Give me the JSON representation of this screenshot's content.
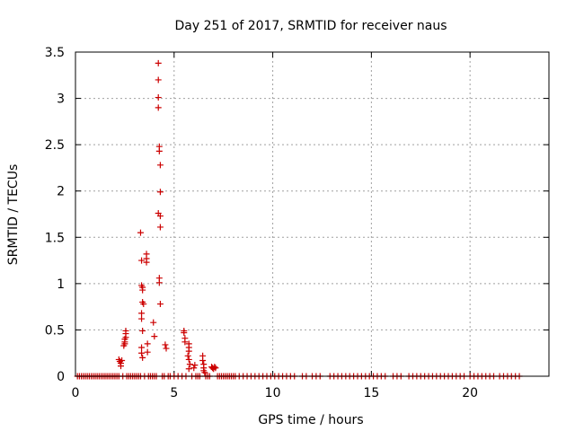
{
  "chart_data": {
    "type": "scatter",
    "title": "Day 251 of 2017, SRMTID for receiver naus",
    "xlabel": "GPS time / hours",
    "ylabel": "SRMTID / TECUs",
    "xlim": [
      0,
      24
    ],
    "ylim": [
      0,
      3.5
    ],
    "xticks": [
      0,
      5,
      10,
      15,
      20
    ],
    "yticks": [
      0,
      0.5,
      1,
      1.5,
      2,
      2.5,
      3,
      3.5
    ],
    "xtick_labels": [
      "0",
      "5",
      "10",
      "15",
      "20"
    ],
    "ytick_labels": [
      "0",
      "0.5",
      "1",
      "1.5",
      "2",
      "2.5",
      "3",
      "3.5"
    ],
    "grid": true,
    "marker": "+",
    "color": "#cc0000",
    "series": [
      {
        "points": [
          [
            2.2,
            0.18
          ],
          [
            2.25,
            0.16
          ],
          [
            2.3,
            0.14
          ],
          [
            2.3,
            0.11
          ],
          [
            2.35,
            0.17
          ],
          [
            2.45,
            0.33
          ],
          [
            2.5,
            0.35
          ],
          [
            2.5,
            0.37
          ],
          [
            2.5,
            0.4
          ],
          [
            2.55,
            0.42
          ],
          [
            2.55,
            0.46
          ],
          [
            2.55,
            0.49
          ],
          [
            3.3,
            1.55
          ],
          [
            3.35,
            1.25
          ],
          [
            3.35,
            0.98
          ],
          [
            3.4,
            0.96
          ],
          [
            3.4,
            0.93
          ],
          [
            3.4,
            0.8
          ],
          [
            3.45,
            0.78
          ],
          [
            3.35,
            0.68
          ],
          [
            3.35,
            0.62
          ],
          [
            3.4,
            0.49
          ],
          [
            3.35,
            0.31
          ],
          [
            3.35,
            0.25
          ],
          [
            3.4,
            0.2
          ],
          [
            3.6,
            1.32
          ],
          [
            3.6,
            1.27
          ],
          [
            3.6,
            1.23
          ],
          [
            3.65,
            0.35
          ],
          [
            3.65,
            0.26
          ],
          [
            3.95,
            0.58
          ],
          [
            4.0,
            0.43
          ],
          [
            4.2,
            3.38
          ],
          [
            4.2,
            3.2
          ],
          [
            4.2,
            3.01
          ],
          [
            4.2,
            2.9
          ],
          [
            4.25,
            2.48
          ],
          [
            4.25,
            2.43
          ],
          [
            4.3,
            2.28
          ],
          [
            4.3,
            1.99
          ],
          [
            4.2,
            1.76
          ],
          [
            4.3,
            1.73
          ],
          [
            4.3,
            1.61
          ],
          [
            4.25,
            1.06
          ],
          [
            4.25,
            1.01
          ],
          [
            4.3,
            0.78
          ],
          [
            4.55,
            0.34
          ],
          [
            4.6,
            0.3
          ],
          [
            5.5,
            0.49
          ],
          [
            5.5,
            0.47
          ],
          [
            5.55,
            0.41
          ],
          [
            5.55,
            0.37
          ],
          [
            5.75,
            0.35
          ],
          [
            5.75,
            0.31
          ],
          [
            5.75,
            0.27
          ],
          [
            5.7,
            0.22
          ],
          [
            5.75,
            0.18
          ],
          [
            5.8,
            0.13
          ],
          [
            5.75,
            0.08
          ],
          [
            6.05,
            0.12
          ],
          [
            6.0,
            0.09
          ],
          [
            6.45,
            0.22
          ],
          [
            6.45,
            0.17
          ],
          [
            6.5,
            0.13
          ],
          [
            6.5,
            0.09
          ],
          [
            6.5,
            0.06
          ],
          [
            6.55,
            0.04
          ],
          [
            6.9,
            0.1
          ],
          [
            6.95,
            0.09
          ],
          [
            7.0,
            0.08
          ],
          [
            7.05,
            0.1
          ],
          [
            7.1,
            0.09
          ],
          [
            0.1,
            0
          ],
          [
            0.2,
            0
          ],
          [
            0.3,
            0
          ],
          [
            0.4,
            0
          ],
          [
            0.5,
            0
          ],
          [
            0.6,
            0
          ],
          [
            0.7,
            0
          ],
          [
            0.8,
            0
          ],
          [
            0.9,
            0
          ],
          [
            1.0,
            0
          ],
          [
            1.1,
            0
          ],
          [
            1.2,
            0
          ],
          [
            1.3,
            0
          ],
          [
            1.4,
            0
          ],
          [
            1.5,
            0
          ],
          [
            1.6,
            0
          ],
          [
            1.7,
            0
          ],
          [
            1.8,
            0
          ],
          [
            1.9,
            0
          ],
          [
            2.0,
            0
          ],
          [
            2.1,
            0
          ],
          [
            2.2,
            0
          ],
          [
            2.4,
            0
          ],
          [
            2.6,
            0
          ],
          [
            2.7,
            0
          ],
          [
            2.8,
            0
          ],
          [
            2.9,
            0
          ],
          [
            3.0,
            0
          ],
          [
            3.1,
            0
          ],
          [
            3.2,
            0
          ],
          [
            3.3,
            0
          ],
          [
            3.5,
            0
          ],
          [
            3.7,
            0
          ],
          [
            3.8,
            0
          ],
          [
            3.9,
            0
          ],
          [
            4.0,
            0
          ],
          [
            4.1,
            0
          ],
          [
            4.4,
            0
          ],
          [
            4.5,
            0
          ],
          [
            4.7,
            0
          ],
          [
            4.8,
            0
          ],
          [
            5.0,
            0
          ],
          [
            5.2,
            0
          ],
          [
            5.4,
            0
          ],
          [
            5.6,
            0
          ],
          [
            5.9,
            0
          ],
          [
            6.1,
            0
          ],
          [
            6.2,
            0
          ],
          [
            6.3,
            0
          ],
          [
            6.6,
            0
          ],
          [
            6.7,
            0
          ],
          [
            6.8,
            0
          ],
          [
            7.2,
            0
          ],
          [
            7.3,
            0
          ],
          [
            7.4,
            0
          ],
          [
            7.5,
            0
          ],
          [
            7.6,
            0
          ],
          [
            7.7,
            0
          ],
          [
            7.8,
            0
          ],
          [
            7.9,
            0
          ],
          [
            8.0,
            0
          ],
          [
            8.1,
            0
          ],
          [
            8.3,
            0
          ],
          [
            8.5,
            0
          ],
          [
            8.7,
            0
          ],
          [
            8.9,
            0
          ],
          [
            9.1,
            0
          ],
          [
            9.3,
            0
          ],
          [
            9.5,
            0
          ],
          [
            9.7,
            0
          ],
          [
            9.9,
            0
          ],
          [
            10.1,
            0
          ],
          [
            10.3,
            0
          ],
          [
            10.5,
            0
          ],
          [
            10.7,
            0
          ],
          [
            10.9,
            0
          ],
          [
            11.1,
            0
          ],
          [
            11.5,
            0
          ],
          [
            11.7,
            0
          ],
          [
            12.0,
            0
          ],
          [
            12.2,
            0
          ],
          [
            12.4,
            0
          ],
          [
            12.9,
            0
          ],
          [
            13.1,
            0
          ],
          [
            13.3,
            0
          ],
          [
            13.5,
            0
          ],
          [
            13.7,
            0
          ],
          [
            13.9,
            0
          ],
          [
            14.1,
            0
          ],
          [
            14.3,
            0
          ],
          [
            14.5,
            0
          ],
          [
            14.7,
            0
          ],
          [
            14.9,
            0
          ],
          [
            15.1,
            0
          ],
          [
            15.3,
            0
          ],
          [
            15.5,
            0
          ],
          [
            15.7,
            0
          ],
          [
            16.1,
            0
          ],
          [
            16.3,
            0
          ],
          [
            16.5,
            0
          ],
          [
            16.9,
            0
          ],
          [
            17.1,
            0
          ],
          [
            17.3,
            0
          ],
          [
            17.5,
            0
          ],
          [
            17.7,
            0
          ],
          [
            17.9,
            0
          ],
          [
            18.1,
            0
          ],
          [
            18.3,
            0
          ],
          [
            18.5,
            0
          ],
          [
            18.7,
            0
          ],
          [
            18.9,
            0
          ],
          [
            19.1,
            0
          ],
          [
            19.3,
            0
          ],
          [
            19.5,
            0
          ],
          [
            19.7,
            0
          ],
          [
            20.0,
            0
          ],
          [
            20.2,
            0
          ],
          [
            20.4,
            0
          ],
          [
            20.6,
            0
          ],
          [
            20.8,
            0
          ],
          [
            21.0,
            0
          ],
          [
            21.2,
            0
          ],
          [
            21.5,
            0
          ],
          [
            21.7,
            0
          ],
          [
            21.9,
            0
          ],
          [
            22.1,
            0
          ],
          [
            22.3,
            0
          ],
          [
            22.5,
            0
          ]
        ]
      }
    ]
  }
}
